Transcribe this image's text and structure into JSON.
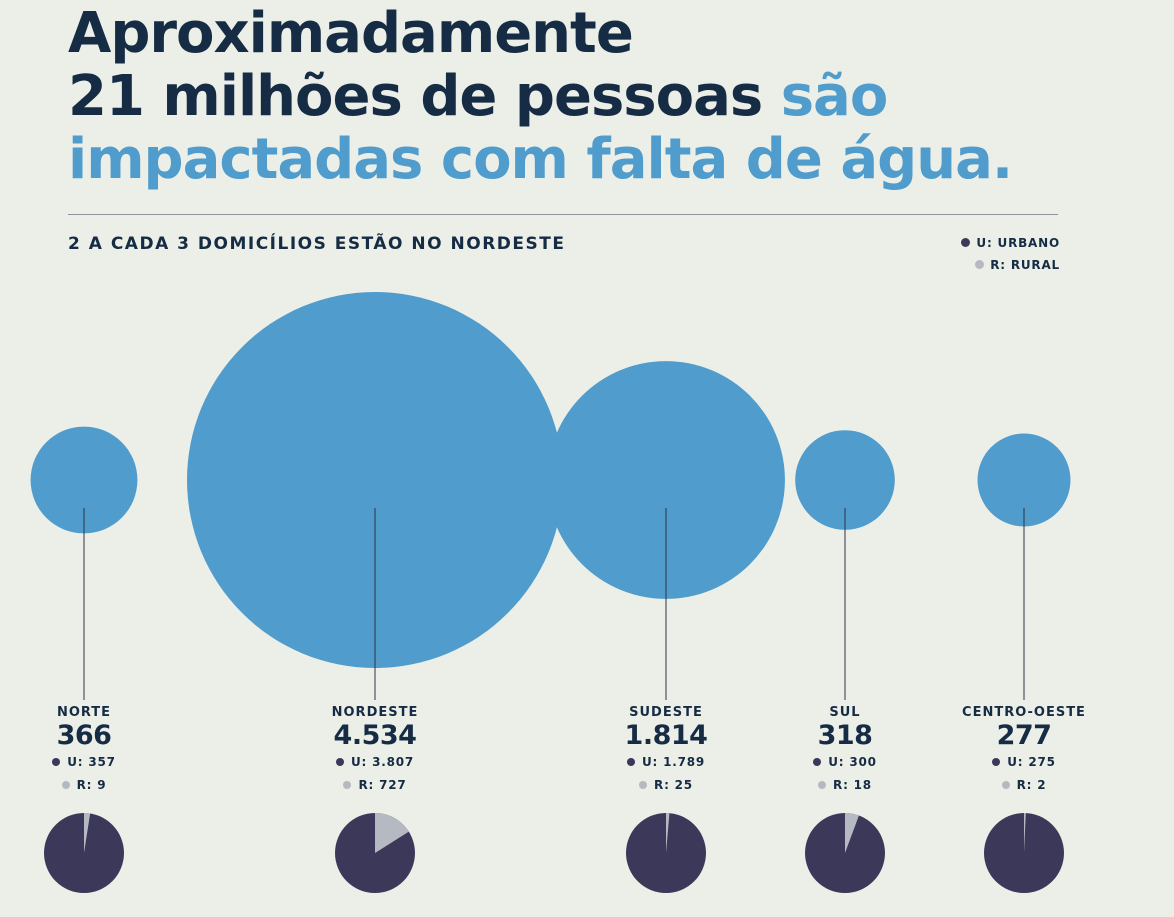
{
  "headline": {
    "line1": "Aproximadamente",
    "line2_dark": "21 milhões de pessoas ",
    "line2_accent": "são",
    "line3_accent": "impactadas com falta de água."
  },
  "subtitle": "2 A CADA 3 DOMICÍLIOS ESTÃO NO NORDESTE",
  "legend": {
    "urban": "U: URBANO",
    "rural": "R: RURAL"
  },
  "colors": {
    "background": "#ecefe7",
    "bubble": "#4f9ccd",
    "urban": "#3b3859",
    "rural": "#b5b9c2",
    "text": "#162b44"
  },
  "chart_data": {
    "type": "bubble",
    "categories": [
      "NORTE",
      "NORDESTE",
      "SUDESTE",
      "SUL",
      "CENTRO-OESTE"
    ],
    "total_labels": [
      "366",
      "4.534",
      "1.814",
      "318",
      "277"
    ],
    "totals": [
      366,
      4534,
      1814,
      318,
      277
    ],
    "urban_labels": [
      "U: 357",
      "U: 3.807",
      "U: 1.789",
      "U: 300",
      "U: 275"
    ],
    "rural_labels": [
      "R: 9",
      "R: 727",
      "R: 25",
      "R: 18",
      "R: 2"
    ],
    "series": [
      {
        "name": "URBANO",
        "values": [
          357,
          3807,
          1789,
          300,
          275
        ]
      },
      {
        "name": "RURAL",
        "values": [
          9,
          727,
          25,
          18,
          2
        ]
      }
    ]
  }
}
